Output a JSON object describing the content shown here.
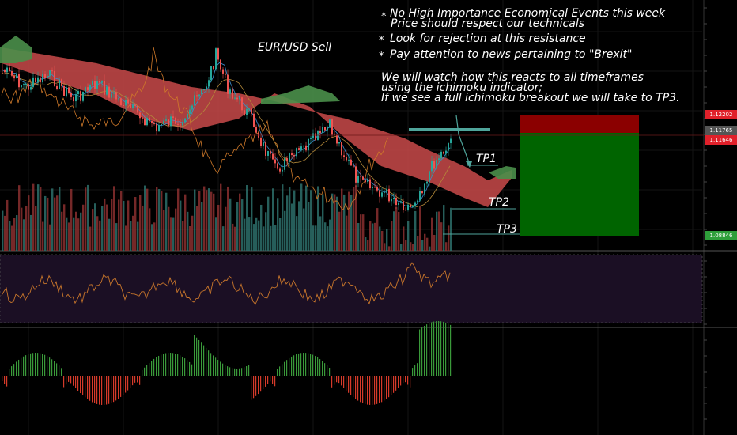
{
  "chart_data": {
    "type": "candlestick",
    "title": "EUR/USD Sell",
    "notes": [
      {
        "marker": "*",
        "lines": [
          "No High Importance Economical Events this week",
          "Price should respect our technicals"
        ]
      },
      {
        "marker": "*",
        "lines": [
          "Look for rejection at this resistance"
        ]
      },
      {
        "marker": "*",
        "lines": [
          "Pay attention to news pertaining to \"Brexit\""
        ]
      },
      {
        "marker": "",
        "lines": [
          "We will watch how this reacts to all timeframes",
          "using the ichimoku indicator;",
          "If we see a full ichimoku breakout we will take to TP3."
        ]
      }
    ],
    "price_labels": [
      {
        "text": "1.12202",
        "color": "#e0202a"
      },
      {
        "text": "1.11765",
        "color": "#555555"
      },
      {
        "text": "1.11646",
        "color": "#e0202a"
      },
      {
        "text": "1.08846",
        "color": "#2e9e3a"
      }
    ],
    "targets": [
      "TP1",
      "TP2",
      "TP3"
    ],
    "position": {
      "side": "short",
      "stop": 1.12202,
      "entry": 1.11765,
      "target": 1.08846
    },
    "colors": {
      "up": "#26a69a",
      "down": "#ef5350",
      "cloud_bear": "#c94a4a",
      "cloud_bull": "#4a8f4a",
      "profit": "#006400",
      "loss": "#8b0000",
      "rsi_bg": "#1b0f24",
      "rsi_line": "#c8762b",
      "macd_up": "#3a9a3a",
      "macd_down": "#d63a2a"
    }
  }
}
